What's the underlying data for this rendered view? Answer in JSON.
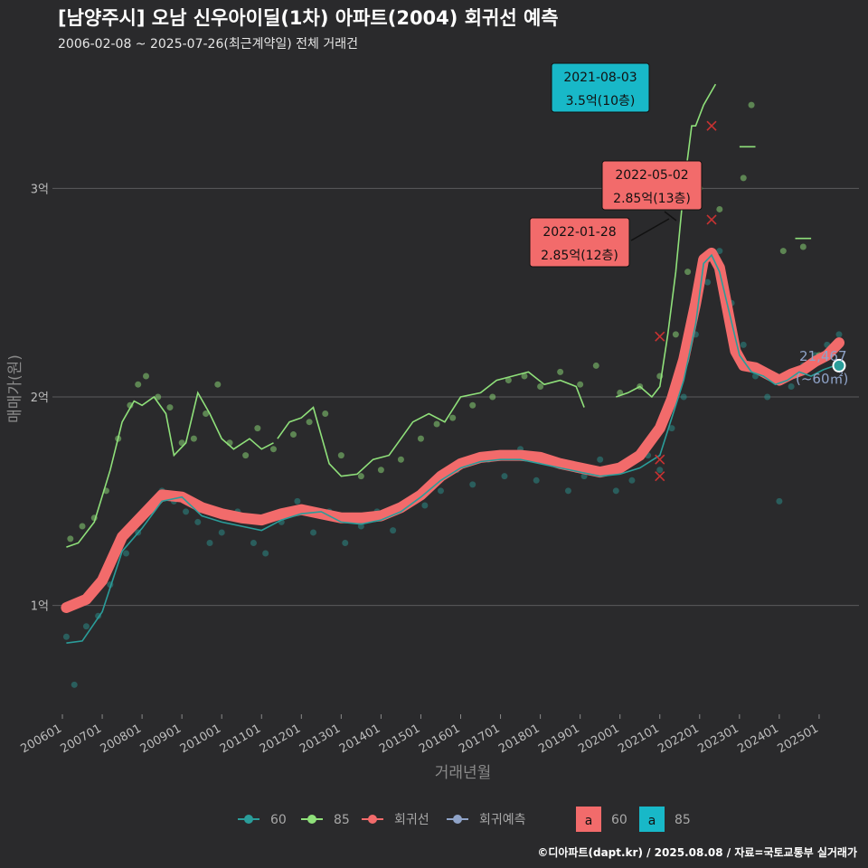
{
  "header": {
    "title": "[남양주시] 오남 신우아이딜(1차) 아파트(2004) 회귀선 예측",
    "subtitle": "2006-02-08 ~ 2025-07-26(최근계약일) 전체 거래건"
  },
  "caption": "©디아파트(dapt.kr) / 2025.08.08 / 자료=국토교통부 실거래가",
  "colors": {
    "background": "#2a2a2c",
    "grid": "#5a5a5c",
    "area60": "#2a9d9a",
    "area85": "#8fe07a",
    "regression": "#f26b6b",
    "forecast": "#8fa3c8",
    "callout_red": "#f26b6b",
    "callout_teal": "#18b8c8"
  },
  "callouts": [
    {
      "date": "2021-08-03",
      "value": "3.5억(10층)",
      "style": "teal"
    },
    {
      "date": "2022-05-02",
      "value": "2.85억(13층)",
      "style": "red"
    },
    {
      "date": "2022-01-28",
      "value": "2.85억(12층)",
      "style": "red"
    }
  ],
  "last_point": {
    "count": "21,467",
    "area": "(~60㎡)"
  },
  "legend": {
    "items": [
      {
        "label": "60",
        "color": "#2a9d9a",
        "icon": "line-point-icon"
      },
      {
        "label": "85",
        "color": "#8fe07a",
        "icon": "line-point-icon"
      },
      {
        "label": "회귀선",
        "color": "#f26b6b",
        "icon": "line-point-icon"
      },
      {
        "label": "회귀예측",
        "color": "#8fa3c8",
        "icon": "line-point-icon"
      }
    ],
    "label_items": [
      {
        "glyph": "a",
        "label": "60",
        "color": "#f26b6b"
      },
      {
        "glyph": "a",
        "label": "85",
        "color": "#18b8c8"
      }
    ]
  },
  "chart_data": {
    "type": "line",
    "title": "[남양주시] 오남 신우아이딜(1차) 아파트(2004) 회귀선 예측",
    "xlabel": "거래년월",
    "ylabel": "매매가(원)",
    "x_range": [
      2006.0,
      2025.6
    ],
    "ylim": [
      0.5,
      3.6
    ],
    "grid": true,
    "legend_position": "bottom",
    "x_ticks": [
      {
        "label": "200601",
        "x": 2006.0
      },
      {
        "label": "200701",
        "x": 2007.0
      },
      {
        "label": "200801",
        "x": 2008.0
      },
      {
        "label": "200901",
        "x": 2009.0
      },
      {
        "label": "201001",
        "x": 2010.0
      },
      {
        "label": "201101",
        "x": 2011.0
      },
      {
        "label": "201201",
        "x": 2012.0
      },
      {
        "label": "201301",
        "x": 2013.0
      },
      {
        "label": "201401",
        "x": 2014.0
      },
      {
        "label": "201501",
        "x": 2015.0
      },
      {
        "label": "201601",
        "x": 2016.0
      },
      {
        "label": "201701",
        "x": 2017.0
      },
      {
        "label": "201801",
        "x": 2018.0
      },
      {
        "label": "201901",
        "x": 2019.0
      },
      {
        "label": "202001",
        "x": 2020.0
      },
      {
        "label": "202101",
        "x": 2021.0
      },
      {
        "label": "202201",
        "x": 2022.0
      },
      {
        "label": "202301",
        "x": 2023.0
      },
      {
        "label": "202401",
        "x": 2024.0
      },
      {
        "label": "202501",
        "x": 2025.0
      }
    ],
    "y_ticks": [
      {
        "label": "1억",
        "y": 1.0
      },
      {
        "label": "2억",
        "y": 2.0
      },
      {
        "label": "3억",
        "y": 3.0
      }
    ],
    "series": [
      {
        "name": "회귀선",
        "x": [
          2006.1,
          2006.6,
          2007.0,
          2007.5,
          2008.0,
          2008.5,
          2009.0,
          2009.5,
          2010.0,
          2010.5,
          2011.0,
          2011.5,
          2012.0,
          2012.5,
          2013.0,
          2013.5,
          2014.0,
          2014.5,
          2015.0,
          2015.5,
          2016.0,
          2016.5,
          2017.0,
          2017.5,
          2018.0,
          2018.5,
          2019.0,
          2019.5,
          2020.0,
          2020.5,
          2021.0,
          2021.3,
          2021.6,
          2021.9,
          2022.1,
          2022.3,
          2022.5,
          2022.7,
          2022.9,
          2023.1,
          2023.4,
          2023.7,
          2024.0,
          2024.3,
          2024.6,
          2024.9,
          2025.2,
          2025.5
        ],
        "y": [
          0.99,
          1.03,
          1.12,
          1.33,
          1.43,
          1.53,
          1.52,
          1.47,
          1.44,
          1.42,
          1.41,
          1.44,
          1.46,
          1.44,
          1.42,
          1.42,
          1.43,
          1.47,
          1.53,
          1.62,
          1.68,
          1.71,
          1.72,
          1.72,
          1.71,
          1.68,
          1.66,
          1.64,
          1.66,
          1.72,
          1.85,
          1.99,
          2.18,
          2.45,
          2.66,
          2.69,
          2.62,
          2.42,
          2.22,
          2.15,
          2.14,
          2.11,
          2.08,
          2.11,
          2.13,
          2.17,
          2.2,
          2.26
        ]
      },
      {
        "name": "60",
        "x": [
          2006.1,
          2006.5,
          2007.0,
          2007.5,
          2008.0,
          2008.5,
          2009.0,
          2009.5,
          2010.0,
          2010.5,
          2011.0,
          2011.5,
          2012.0,
          2012.5,
          2013.0,
          2013.5,
          2014.0,
          2014.5,
          2015.0,
          2015.5,
          2016.0,
          2016.5,
          2017.0,
          2017.5,
          2018.0,
          2018.5,
          2019.0,
          2019.5,
          2020.0,
          2020.5,
          2021.0,
          2021.3,
          2021.6,
          2021.9,
          2022.1,
          2022.3,
          2022.5,
          2022.7,
          2023.0,
          2023.3,
          2023.6,
          2023.9,
          2024.2,
          2024.5,
          2024.8,
          2025.1,
          2025.4
        ],
        "y": [
          0.82,
          0.83,
          0.97,
          1.26,
          1.37,
          1.5,
          1.52,
          1.43,
          1.4,
          1.38,
          1.36,
          1.41,
          1.44,
          1.45,
          1.4,
          1.39,
          1.41,
          1.45,
          1.52,
          1.6,
          1.66,
          1.69,
          1.7,
          1.7,
          1.68,
          1.66,
          1.64,
          1.62,
          1.63,
          1.66,
          1.72,
          1.9,
          2.08,
          2.35,
          2.64,
          2.68,
          2.6,
          2.44,
          2.2,
          2.12,
          2.1,
          2.06,
          2.08,
          2.12,
          2.1,
          2.13,
          2.15
        ]
      },
      {
        "name": "85",
        "segments": [
          {
            "x": [
              2006.1,
              2006.4,
              2006.8,
              2007.2,
              2007.5,
              2007.8,
              2008.0,
              2008.3,
              2008.6,
              2008.8,
              2009.1,
              2009.4,
              2009.7,
              2010.0,
              2010.3,
              2010.7,
              2011.0,
              2011.3
            ],
            "y": [
              1.28,
              1.3,
              1.4,
              1.65,
              1.88,
              1.98,
              1.96,
              2.0,
              1.92,
              1.72,
              1.78,
              2.02,
              1.92,
              1.8,
              1.75,
              1.8,
              1.75,
              1.78
            ]
          },
          {
            "x": [
              2011.4,
              2011.7,
              2012.0,
              2012.3,
              2012.7,
              2013.0,
              2013.4,
              2013.8,
              2014.2,
              2014.5,
              2014.8,
              2015.2,
              2015.6,
              2016.0,
              2016.5,
              2016.9,
              2017.3,
              2017.7,
              2018.1,
              2018.5,
              2018.9,
              2019.1
            ],
            "y": [
              1.8,
              1.88,
              1.9,
              1.95,
              1.68,
              1.62,
              1.63,
              1.7,
              1.72,
              1.8,
              1.88,
              1.92,
              1.88,
              2.0,
              2.02,
              2.08,
              2.1,
              2.12,
              2.06,
              2.08,
              2.05,
              1.95
            ]
          },
          {
            "x": [
              2019.9,
              2020.2,
              2020.5,
              2020.8,
              2021.0,
              2021.2,
              2021.4,
              2021.6,
              2021.8,
              2021.9,
              2022.1,
              2022.4
            ],
            "y": [
              2.0,
              2.02,
              2.05,
              2.0,
              2.05,
              2.3,
              2.6,
              3.0,
              3.3,
              3.3,
              3.4,
              3.5
            ]
          },
          {
            "x": [
              2023.0,
              2023.4
            ],
            "y": [
              3.2,
              3.2
            ]
          },
          {
            "x": [
              2024.4,
              2024.8
            ],
            "y": [
              2.76,
              2.76
            ]
          }
        ]
      }
    ],
    "scatter_85": {
      "x": [
        2006.2,
        2006.5,
        2006.8,
        2007.1,
        2007.4,
        2007.7,
        2007.9,
        2008.1,
        2008.4,
        2008.7,
        2009.0,
        2009.3,
        2009.6,
        2009.9,
        2010.2,
        2010.6,
        2010.9,
        2011.3,
        2011.8,
        2012.2,
        2012.6,
        2013.0,
        2013.5,
        2014.0,
        2014.5,
        2015.0,
        2015.4,
        2015.8,
        2016.3,
        2016.8,
        2017.2,
        2017.6,
        2018.0,
        2018.5,
        2019.0,
        2019.4,
        2020.0,
        2020.5,
        2021.0,
        2021.4,
        2021.7,
        2022.0,
        2022.5,
        2023.1,
        2023.3,
        2024.1,
        2024.6,
        2025.0
      ],
      "y": [
        1.32,
        1.38,
        1.42,
        1.55,
        1.8,
        1.96,
        2.06,
        2.1,
        2.0,
        1.95,
        1.78,
        1.8,
        1.92,
        2.06,
        1.78,
        1.72,
        1.85,
        1.75,
        1.82,
        1.88,
        1.92,
        1.72,
        1.62,
        1.65,
        1.7,
        1.8,
        1.87,
        1.9,
        1.96,
        2.0,
        2.08,
        2.1,
        2.05,
        2.12,
        2.06,
        2.15,
        2.02,
        2.05,
        2.1,
        2.3,
        2.6,
        3.0,
        2.9,
        3.05,
        3.4,
        2.7,
        2.72,
        2.2
      ]
    },
    "scatter_60": {
      "x": [
        2006.1,
        2006.3,
        2006.6,
        2006.9,
        2007.2,
        2007.6,
        2007.9,
        2008.2,
        2008.5,
        2008.8,
        2009.1,
        2009.4,
        2009.7,
        2010.0,
        2010.4,
        2010.8,
        2011.1,
        2011.5,
        2011.9,
        2012.3,
        2012.7,
        2013.1,
        2013.5,
        2013.9,
        2014.3,
        2014.7,
        2015.1,
        2015.5,
        2015.9,
        2016.3,
        2016.7,
        2017.1,
        2017.5,
        2017.9,
        2018.3,
        2018.7,
        2019.1,
        2019.5,
        2019.9,
        2020.3,
        2020.7,
        2021.0,
        2021.3,
        2021.6,
        2021.9,
        2022.2,
        2022.5,
        2022.8,
        2023.1,
        2023.4,
        2023.7,
        2024.0,
        2024.3,
        2024.6,
        2024.9,
        2025.2,
        2025.5
      ],
      "y": [
        0.85,
        0.62,
        0.9,
        0.95,
        1.1,
        1.25,
        1.35,
        1.45,
        1.55,
        1.5,
        1.45,
        1.4,
        1.3,
        1.35,
        1.45,
        1.3,
        1.25,
        1.4,
        1.5,
        1.35,
        1.45,
        1.3,
        1.38,
        1.45,
        1.36,
        1.5,
        1.48,
        1.55,
        1.65,
        1.58,
        1.7,
        1.62,
        1.75,
        1.6,
        1.68,
        1.55,
        1.62,
        1.7,
        1.55,
        1.6,
        1.72,
        1.65,
        1.85,
        2.0,
        2.3,
        2.55,
        2.7,
        2.45,
        2.25,
        2.1,
        2.0,
        1.5,
        2.05,
        2.15,
        2.2,
        2.25,
        2.3
      ]
    },
    "highlight_points": [
      {
        "x": 2021.0,
        "y": 2.29
      },
      {
        "x": 2021.0,
        "y": 1.7
      },
      {
        "x": 2021.0,
        "y": 1.62
      },
      {
        "x": 2022.3,
        "y": 2.85
      },
      {
        "x": 2022.3,
        "y": 3.3
      }
    ],
    "forecast_point": {
      "x": 2025.5,
      "y": 2.15
    }
  }
}
